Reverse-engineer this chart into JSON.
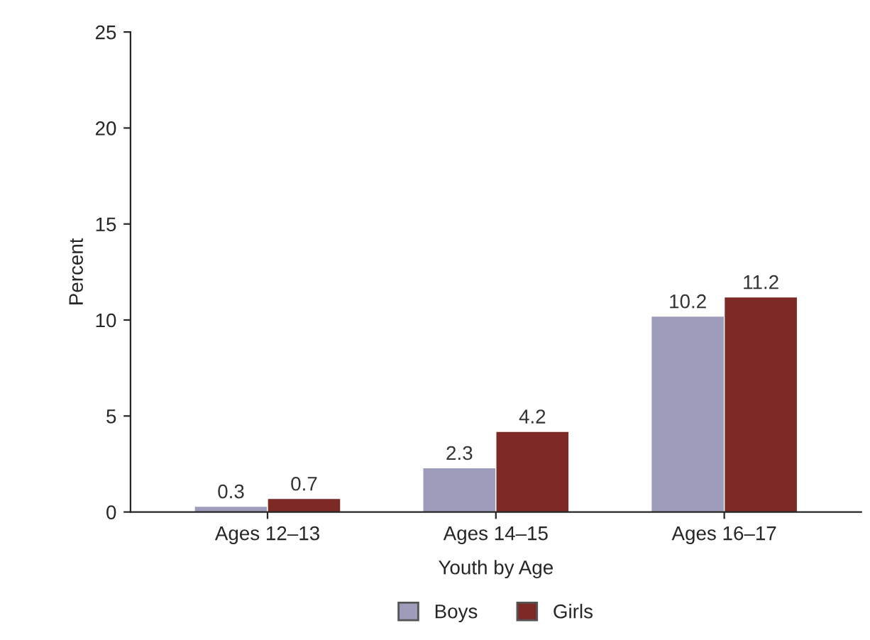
{
  "chart_data": {
    "type": "bar",
    "xlabel": "Youth by Age",
    "ylabel": "Percent",
    "categories": [
      "Ages 12–13",
      "Ages 14–15",
      "Ages 16–17"
    ],
    "series": [
      {
        "name": "Boys",
        "color": "#9d9cba",
        "values": [
          0.3,
          2.3,
          10.2
        ]
      },
      {
        "name": "Girls",
        "color": "#7d2a26",
        "values": [
          0.7,
          4.2,
          11.2
        ]
      }
    ],
    "ylim": [
      0,
      25
    ],
    "yticks": [
      0,
      5,
      10,
      15,
      20,
      25
    ],
    "grid": false,
    "legend": "bottom",
    "data_labels": true
  }
}
